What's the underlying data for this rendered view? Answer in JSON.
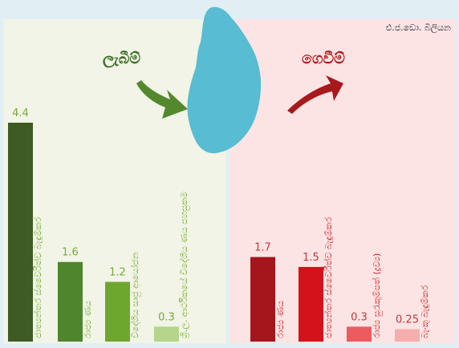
{
  "unit_label": "එ.ජ.ඩො. බිලියන",
  "income_label": "ලැබීම්",
  "expense_label": "ගෙවීම්",
  "colors": {
    "income": [
      "#3d5b22",
      "#4e852d",
      "#6ea72e",
      "#b5d58b"
    ],
    "expense": [
      "#a4161b",
      "#d3121c",
      "#ec5b60",
      "#f6adad"
    ],
    "map": "#58bcd3",
    "income_text": "#79ad34",
    "expense_text": "#c81e22"
  },
  "chart_data": [
    {
      "type": "bar",
      "title": "ලැබීම්",
      "categories": [
        "ජාත්‍යන්තර ස්වෛරීත්ව බැඳුම්කර",
        "රාජ්‍ය ණය",
        "විදේශීය සෘජු ආයෝජන",
        "ශ්‍රී.ල. ආර්ථිකයේ විදේශීය ණය පහසුකම"
      ],
      "values": [
        4.4,
        1.6,
        1.2,
        0.3
      ],
      "value_labels": [
        "4.4",
        "1.6",
        "1.2",
        "0.3"
      ],
      "ylim": [
        0,
        4.4
      ]
    },
    {
      "type": "bar",
      "title": "ගෙවීම්",
      "categories": [
        "රාජ්‍ය ණය",
        "ජාත්‍යන්තර ස්වෛරීත්ව බැඳුම්කර",
        "රාජ්‍ය සුරැකුම්පත් (ද්‍රව්‍ය)",
        "බැංකු බැඳුම්කර"
      ],
      "values": [
        1.7,
        1.5,
        0.3,
        0.25
      ],
      "value_labels": [
        "1.7",
        "1.5",
        "0.3",
        "0.25"
      ],
      "ylim": [
        0,
        4.4
      ]
    }
  ]
}
